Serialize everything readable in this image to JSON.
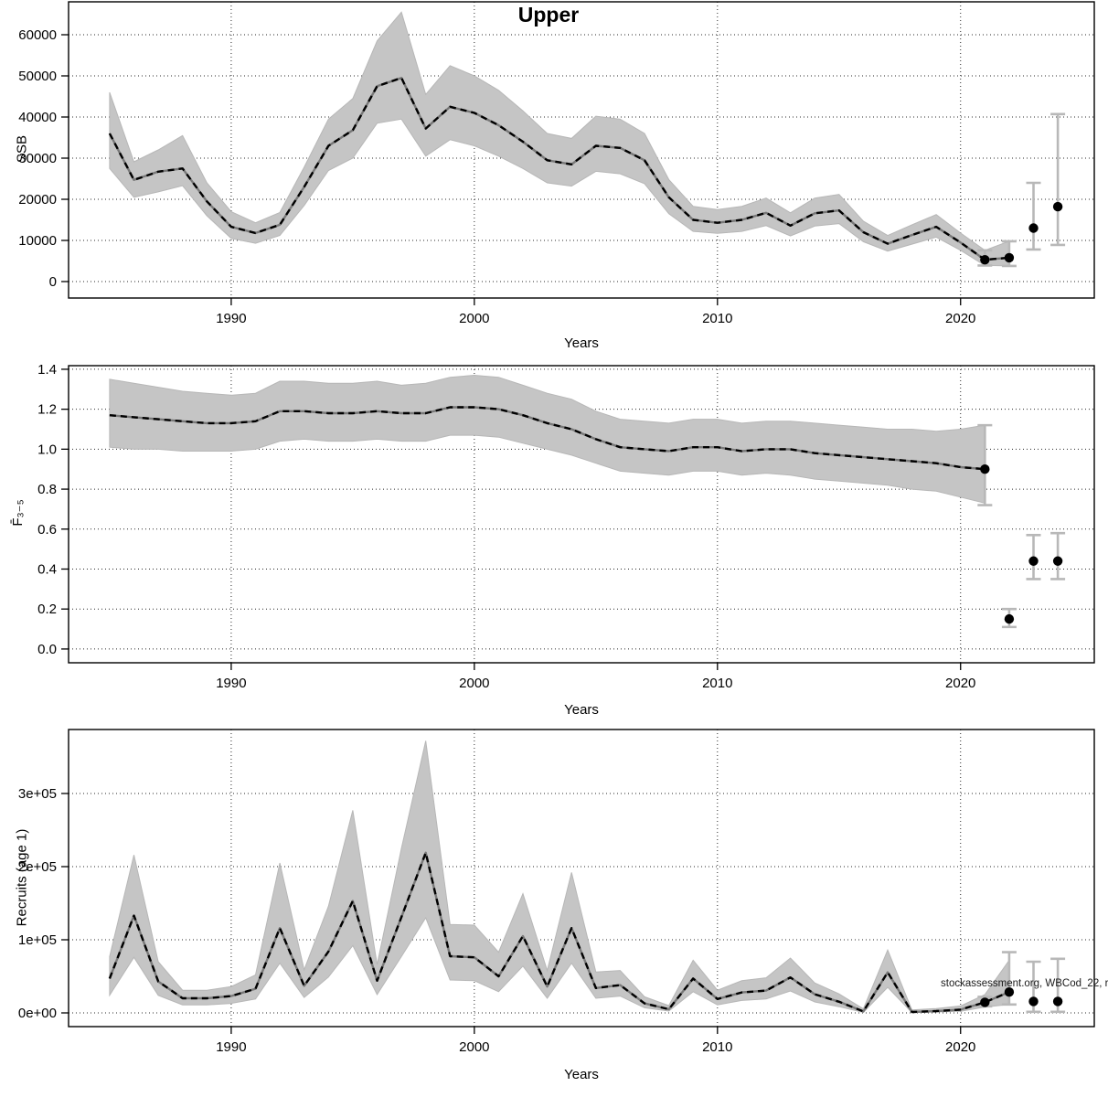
{
  "figure": {
    "watermark": "stockassessment.org, WBCod_22, r",
    "background": "#ffffff"
  },
  "colors": {
    "band": "#c5c5c5",
    "band_edge": "#b7b7b7",
    "line_base": "#787878",
    "line_dash": "#000000",
    "errorbar": "#b8b8b8",
    "point": "#000000",
    "grid": "#2a2a2a",
    "axis": "#000000"
  },
  "chart_data": [
    {
      "type": "line",
      "title": "Upper",
      "xlabel": "Years",
      "ylabel": "SSB",
      "legend": "none",
      "grid": true,
      "xlim": [
        1983.31,
        2025.5
      ],
      "ylim": [
        -4000,
        68000
      ],
      "xticks": [
        1990,
        2000,
        2010,
        2020
      ],
      "yticks": [
        0,
        10000,
        20000,
        30000,
        40000,
        50000,
        60000
      ],
      "ytick_labels": [
        "0",
        "10000",
        "20000",
        "30000",
        "40000",
        "50000",
        "60000"
      ],
      "x": [
        1985,
        1986,
        1987,
        1988,
        1989,
        1990,
        1991,
        1992,
        1993,
        1994,
        1995,
        1996,
        1997,
        1998,
        1999,
        2000,
        2001,
        2002,
        2003,
        2004,
        2005,
        2006,
        2007,
        2008,
        2009,
        2010,
        2011,
        2012,
        2013,
        2014,
        2015,
        2016,
        2017,
        2018,
        2019,
        2020,
        2021,
        2022
      ],
      "values": [
        36000,
        24700,
        26700,
        27500,
        19500,
        13300,
        11800,
        13800,
        23000,
        33000,
        36800,
        47500,
        49500,
        37200,
        42500,
        41000,
        38000,
        34000,
        29500,
        28500,
        33000,
        32500,
        29500,
        20500,
        15000,
        14300,
        15000,
        16700,
        13600,
        16600,
        17300,
        12000,
        9200,
        11300,
        13300,
        9500,
        5300,
        5800
      ],
      "band_low": [
        27500,
        20500,
        21800,
        23300,
        16000,
        10500,
        9300,
        11200,
        18500,
        27000,
        30000,
        38500,
        39500,
        30500,
        34500,
        33000,
        30500,
        27500,
        24000,
        23200,
        26800,
        26200,
        23800,
        16500,
        12200,
        11700,
        12200,
        13600,
        11100,
        13500,
        14100,
        9700,
        7400,
        9100,
        10800,
        7600,
        3900,
        3800
      ],
      "band_high": [
        46000,
        29100,
        32000,
        35500,
        24000,
        17000,
        14300,
        16800,
        27800,
        39500,
        44500,
        58500,
        65500,
        45500,
        52500,
        50000,
        46500,
        41500,
        36000,
        34800,
        40200,
        39500,
        36000,
        24800,
        18300,
        17500,
        18300,
        20300,
        16700,
        20300,
        21200,
        14700,
        11200,
        13800,
        16300,
        11800,
        7600,
        9800
      ],
      "points": [
        {
          "x": 2021,
          "y": 5300,
          "low": 3900,
          "high": 7600
        },
        {
          "x": 2022,
          "y": 5800,
          "low": 3800,
          "high": 9800
        },
        {
          "x": 2023,
          "y": 13000,
          "low": 7800,
          "high": 24000
        },
        {
          "x": 2024,
          "y": 18200,
          "low": 8900,
          "high": 40700
        }
      ]
    },
    {
      "type": "line",
      "title": "",
      "xlabel": "Years",
      "ylabel": "F̄₃₋₅",
      "legend": "none",
      "grid": true,
      "xlim": [
        1983.31,
        2025.5
      ],
      "ylim": [
        -0.069,
        1.418
      ],
      "xticks": [
        1990,
        2000,
        2010,
        2020
      ],
      "yticks": [
        0.0,
        0.2,
        0.4,
        0.6,
        0.8,
        1.0,
        1.2,
        1.4
      ],
      "ytick_labels": [
        "0.0",
        "0.2",
        "0.4",
        "0.6",
        "0.8",
        "1.0",
        "1.2",
        "1.4"
      ],
      "x": [
        1985,
        1986,
        1987,
        1988,
        1989,
        1990,
        1991,
        1992,
        1993,
        1994,
        1995,
        1996,
        1997,
        1998,
        1999,
        2000,
        2001,
        2002,
        2003,
        2004,
        2005,
        2006,
        2007,
        2008,
        2009,
        2010,
        2011,
        2012,
        2013,
        2014,
        2015,
        2016,
        2017,
        2018,
        2019,
        2020,
        2021
      ],
      "values": [
        1.17,
        1.16,
        1.15,
        1.14,
        1.13,
        1.13,
        1.14,
        1.19,
        1.19,
        1.18,
        1.18,
        1.19,
        1.18,
        1.18,
        1.21,
        1.21,
        1.2,
        1.17,
        1.13,
        1.1,
        1.05,
        1.01,
        1.0,
        0.99,
        1.01,
        1.01,
        0.99,
        1.0,
        1.0,
        0.98,
        0.97,
        0.96,
        0.95,
        0.94,
        0.93,
        0.91,
        0.9
      ],
      "band_low": [
        1.01,
        1.0,
        1.0,
        0.99,
        0.99,
        0.99,
        1.0,
        1.04,
        1.05,
        1.04,
        1.04,
        1.05,
        1.04,
        1.04,
        1.07,
        1.07,
        1.06,
        1.03,
        1.0,
        0.97,
        0.93,
        0.89,
        0.88,
        0.87,
        0.89,
        0.89,
        0.87,
        0.88,
        0.87,
        0.85,
        0.84,
        0.83,
        0.82,
        0.8,
        0.79,
        0.76,
        0.73
      ],
      "band_high": [
        1.35,
        1.33,
        1.31,
        1.29,
        1.28,
        1.27,
        1.28,
        1.34,
        1.34,
        1.33,
        1.33,
        1.34,
        1.32,
        1.33,
        1.36,
        1.37,
        1.36,
        1.32,
        1.28,
        1.25,
        1.19,
        1.15,
        1.14,
        1.13,
        1.15,
        1.15,
        1.13,
        1.14,
        1.14,
        1.13,
        1.12,
        1.11,
        1.1,
        1.1,
        1.09,
        1.1,
        1.12
      ],
      "points": [
        {
          "x": 2021,
          "y": 0.9,
          "low": 0.72,
          "high": 1.12
        },
        {
          "x": 2022,
          "y": 0.15,
          "low": 0.11,
          "high": 0.2
        },
        {
          "x": 2023,
          "y": 0.44,
          "low": 0.35,
          "high": 0.57
        },
        {
          "x": 2024,
          "y": 0.44,
          "low": 0.35,
          "high": 0.58
        }
      ]
    },
    {
      "type": "line",
      "title": "",
      "xlabel": "Years",
      "ylabel": "Recruits (age 1)",
      "legend": "none",
      "grid": true,
      "xlim": [
        1983.31,
        2025.5
      ],
      "ylim": [
        -18750,
        387500
      ],
      "xticks": [
        1990,
        2000,
        2010,
        2020
      ],
      "yticks": [
        0,
        100000,
        200000,
        300000
      ],
      "ytick_labels": [
        "0e+00",
        "1e+05",
        "2e+05",
        "3e+05"
      ],
      "x": [
        1985,
        1986,
        1987,
        1988,
        1989,
        1990,
        1991,
        1992,
        1993,
        1994,
        1995,
        1996,
        1997,
        1998,
        1999,
        2000,
        2001,
        2002,
        2003,
        2004,
        2005,
        2006,
        2007,
        2008,
        2009,
        2010,
        2011,
        2012,
        2013,
        2014,
        2015,
        2016,
        2017,
        2018,
        2019,
        2020,
        2021,
        2022
      ],
      "values": [
        47000,
        133000,
        43000,
        20000,
        20000,
        23000,
        33000,
        116000,
        37000,
        84000,
        153000,
        44000,
        131000,
        219000,
        77500,
        76000,
        50000,
        105000,
        36000,
        116000,
        34000,
        38000,
        13000,
        5000,
        47000,
        19000,
        28000,
        30500,
        48500,
        25500,
        15300,
        2000,
        55500,
        1200,
        2500,
        4500,
        14500,
        28500
      ],
      "band_low": [
        24000,
        76000,
        24000,
        11000,
        11000,
        13000,
        19000,
        68000,
        21000,
        49000,
        92000,
        25000,
        77000,
        130000,
        45000,
        44000,
        29000,
        64000,
        20000,
        68000,
        20000,
        23000,
        7000,
        2500,
        29000,
        11000,
        17000,
        19000,
        30000,
        15000,
        8500,
        800,
        35000,
        500,
        1200,
        2200,
        8000,
        11500
      ],
      "band_high": [
        77000,
        216000,
        70000,
        31000,
        31000,
        36000,
        52000,
        205000,
        59000,
        146000,
        277000,
        66000,
        225000,
        372000,
        121000,
        120000,
        83000,
        163000,
        58000,
        192000,
        56000,
        58000,
        22000,
        10000,
        72000,
        31000,
        44000,
        48000,
        75000,
        41000,
        26000,
        5500,
        86000,
        4000,
        6000,
        9500,
        25000,
        72000
      ],
      "points": [
        {
          "x": 2021,
          "y": 14500,
          "low": 9000,
          "high": 22000
        },
        {
          "x": 2022,
          "y": 28500,
          "low": 11500,
          "high": 83000
        },
        {
          "x": 2023,
          "y": 15700,
          "low": 1500,
          "high": 70000
        },
        {
          "x": 2024,
          "y": 15700,
          "low": 1500,
          "high": 74000
        }
      ]
    }
  ]
}
